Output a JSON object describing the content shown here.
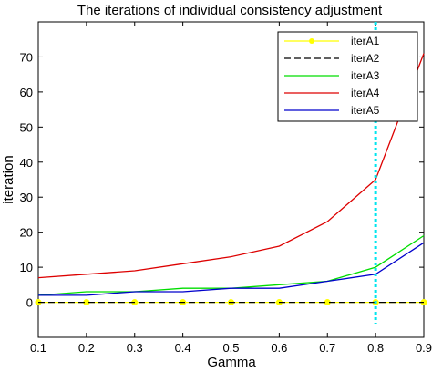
{
  "chart_data": {
    "type": "line",
    "title": "The iterations of individual consistency adjustment",
    "xlabel": "Gamma",
    "ylabel": "iteration",
    "xlim": [
      0.1,
      0.9
    ],
    "ylim": [
      -10,
      80
    ],
    "x_ticks": [
      "0.1",
      "0.2",
      "0.3",
      "0.4",
      "0.5",
      "0.6",
      "0.7",
      "0.8",
      "0.9"
    ],
    "y_ticks": [
      "0",
      "10",
      "20",
      "30",
      "40",
      "50",
      "60",
      "70"
    ],
    "x": [
      0.1,
      0.2,
      0.3,
      0.4,
      0.5,
      0.6,
      0.7,
      0.8,
      0.9
    ],
    "legend_position": "top-right",
    "grid": false,
    "series": [
      {
        "name": "iterA1",
        "color": "#ffff00",
        "style": "solid",
        "marker": "dot",
        "values": [
          0,
          0,
          0,
          0,
          0,
          0,
          0,
          0,
          0
        ]
      },
      {
        "name": "iterA2",
        "color": "#000000",
        "style": "dashed",
        "marker": "none",
        "values": [
          0,
          0,
          0,
          0,
          0,
          0,
          0,
          0,
          0
        ]
      },
      {
        "name": "iterA3",
        "color": "#00dd00",
        "style": "solid",
        "marker": "none",
        "values": [
          2,
          3,
          3,
          4,
          4,
          5,
          6,
          10,
          19
        ]
      },
      {
        "name": "iterA4",
        "color": "#dd0000",
        "style": "solid",
        "marker": "none",
        "values": [
          7,
          8,
          9,
          11,
          13,
          16,
          23,
          35,
          71
        ]
      },
      {
        "name": "iterA5",
        "color": "#0000cc",
        "style": "solid",
        "marker": "none",
        "values": [
          2,
          2,
          3,
          3,
          4,
          4,
          6,
          8,
          17
        ]
      }
    ],
    "reference_line": {
      "x": 0.8,
      "color": "#00e5ee",
      "style": "dotted"
    }
  }
}
